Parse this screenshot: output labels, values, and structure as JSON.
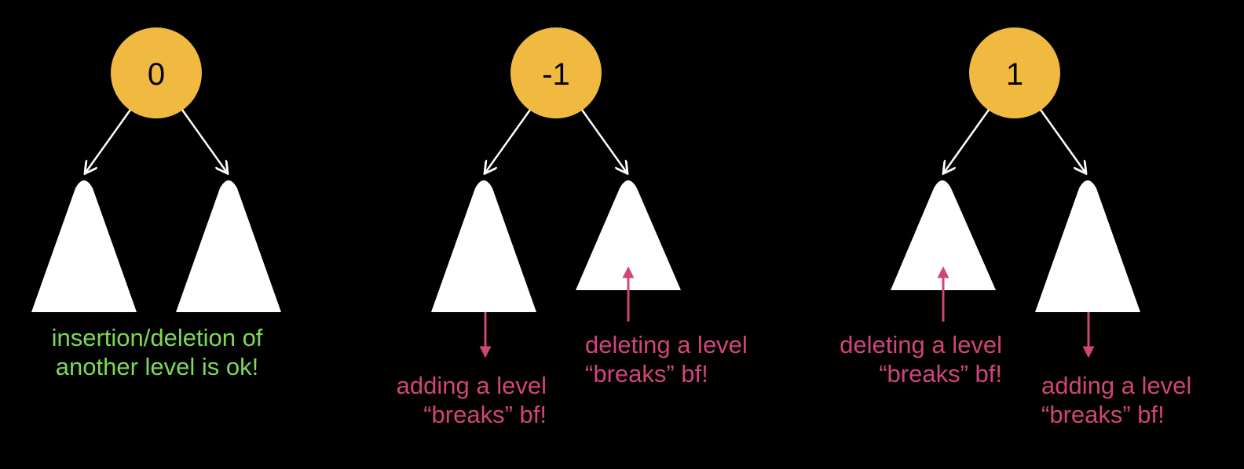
{
  "colors": {
    "background": "#000000",
    "node_fill": "#f0b93f",
    "tree_fill": "#ffffff",
    "ok_text": "#7ed957",
    "warning": "#d0457a"
  },
  "trees": [
    {
      "balance_factor": "0",
      "captions": [
        {
          "line1": "insertion/deletion of",
          "line2": "another level is ok!"
        }
      ]
    },
    {
      "balance_factor": "-1",
      "captions": [
        {
          "line1": "adding a level",
          "line2": "“breaks” bf!"
        },
        {
          "line1": "deleting a level",
          "line2": "“breaks” bf!"
        }
      ]
    },
    {
      "balance_factor": "1",
      "captions": [
        {
          "line1": "deleting a level",
          "line2": "“breaks” bf!"
        },
        {
          "line1": "adding a level",
          "line2": "“breaks” bf!"
        }
      ]
    }
  ]
}
